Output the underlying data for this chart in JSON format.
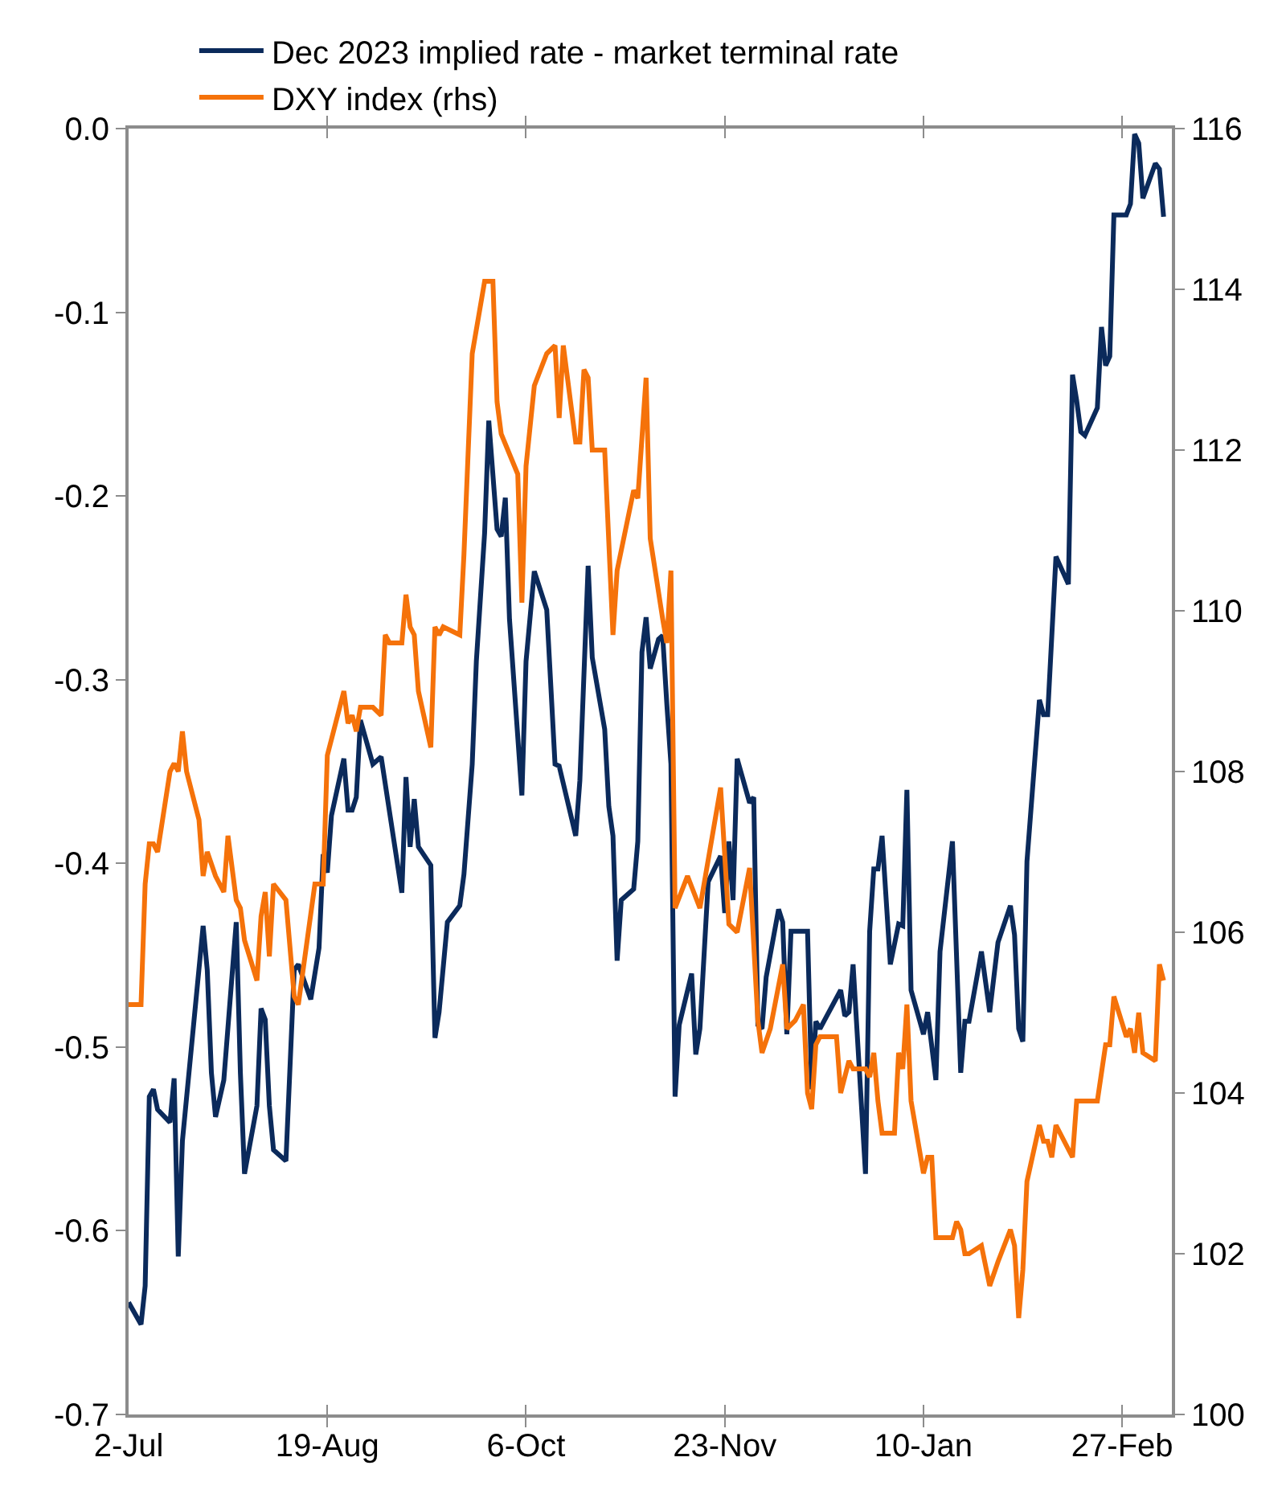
{
  "chart_data": {
    "type": "line",
    "xlim": [
      "2022-07-02",
      "2023-03-11"
    ],
    "xticks": [
      {
        "value": "2022-07-02",
        "label": "2-Jul"
      },
      {
        "value": "2022-08-19",
        "label": "19-Aug"
      },
      {
        "value": "2022-10-06",
        "label": "6-Oct"
      },
      {
        "value": "2022-11-23",
        "label": "23-Nov"
      },
      {
        "value": "2023-01-10",
        "label": "10-Jan"
      },
      {
        "value": "2023-02-27",
        "label": "27-Feb"
      }
    ],
    "ylim": [
      -0.7,
      0.0
    ],
    "yticks": [
      -0.7,
      -0.6,
      -0.5,
      -0.4,
      -0.3,
      -0.2,
      -0.1,
      {
        "value": 0.0,
        "label": "0.0"
      }
    ],
    "y2lim": [
      100,
      116
    ],
    "y2ticks": [
      100,
      102,
      104,
      106,
      108,
      110,
      112,
      114,
      116
    ],
    "legend": "top left",
    "line_style": "solid",
    "series": [
      {
        "name": "Dec 2023 implied rate - market terminal rate",
        "color": "#0b2a5b",
        "x": [
          "2022-07-02",
          "2022-07-05",
          "2022-07-06",
          "2022-07-07",
          "2022-07-08",
          "2022-07-09",
          "2022-07-12",
          "2022-07-13",
          "2022-07-14",
          "2022-07-15",
          "2022-07-20",
          "2022-07-21",
          "2022-07-22",
          "2022-07-23",
          "2022-07-25",
          "2022-07-28",
          "2022-07-29",
          "2022-07-30",
          "2022-08-02",
          "2022-08-03",
          "2022-08-04",
          "2022-08-05",
          "2022-08-06",
          "2022-08-09",
          "2022-08-11",
          "2022-08-12",
          "2022-08-15",
          "2022-08-17",
          "2022-08-18",
          "2022-08-19",
          "2022-08-20",
          "2022-08-23",
          "2022-08-24",
          "2022-08-25",
          "2022-08-26",
          "2022-08-27",
          "2022-08-30",
          "2022-09-01",
          "2022-09-06",
          "2022-09-07",
          "2022-09-08",
          "2022-09-09",
          "2022-09-10",
          "2022-09-13",
          "2022-09-14",
          "2022-09-15",
          "2022-09-17",
          "2022-09-20",
          "2022-09-21",
          "2022-09-23",
          "2022-09-24",
          "2022-09-26",
          "2022-09-27",
          "2022-09-29",
          "2022-09-30",
          "2022-10-01",
          "2022-10-02",
          "2022-10-05",
          "2022-10-06",
          "2022-10-08",
          "2022-10-11",
          "2022-10-13",
          "2022-10-14",
          "2022-10-18",
          "2022-10-19",
          "2022-10-21",
          "2022-10-22",
          "2022-10-25",
          "2022-10-26",
          "2022-10-27",
          "2022-10-28",
          "2022-10-29",
          "2022-11-01",
          "2022-11-02",
          "2022-11-03",
          "2022-11-04",
          "2022-11-05",
          "2022-11-07",
          "2022-11-08",
          "2022-11-09",
          "2022-11-10",
          "2022-11-11",
          "2022-11-12",
          "2022-11-15",
          "2022-11-16",
          "2022-11-17",
          "2022-11-19",
          "2022-11-22",
          "2022-11-23",
          "2022-11-24",
          "2022-11-25",
          "2022-11-26",
          "2022-11-29",
          "2022-11-30",
          "2022-12-01",
          "2022-12-02",
          "2022-12-03",
          "2022-12-06",
          "2022-12-07",
          "2022-12-08",
          "2022-12-09",
          "2022-12-13",
          "2022-12-14",
          "2022-12-15",
          "2022-12-16",
          "2022-12-21",
          "2022-12-22",
          "2022-12-23",
          "2022-12-24",
          "2022-12-27",
          "2022-12-28",
          "2022-12-29",
          "2022-12-30",
          "2022-12-31",
          "2023-01-02",
          "2023-01-04",
          "2023-01-05",
          "2023-01-06",
          "2023-01-07",
          "2023-01-10",
          "2023-01-11",
          "2023-01-13",
          "2023-01-14",
          "2023-01-17",
          "2023-01-19",
          "2023-01-20",
          "2023-01-21",
          "2023-01-24",
          "2023-01-26",
          "2023-01-28",
          "2023-01-31",
          "2023-02-01",
          "2023-02-02",
          "2023-02-03",
          "2023-02-04",
          "2023-02-07",
          "2023-02-08",
          "2023-02-09",
          "2023-02-11",
          "2023-02-14",
          "2023-02-15",
          "2023-02-16",
          "2023-02-17",
          "2023-02-18",
          "2023-02-21",
          "2023-02-22",
          "2023-02-23",
          "2023-02-24",
          "2023-02-25",
          "2023-02-28",
          "2023-03-01",
          "2023-03-02",
          "2023-03-03",
          "2023-03-04",
          "2023-03-07",
          "2023-03-08",
          "2023-03-09"
        ],
        "values": [
          -0.639,
          -0.651,
          -0.63,
          -0.527,
          -0.523,
          -0.534,
          -0.541,
          -0.517,
          -0.614,
          -0.551,
          -0.434,
          -0.458,
          -0.514,
          -0.538,
          -0.518,
          -0.432,
          -0.514,
          -0.569,
          -0.532,
          -0.479,
          -0.485,
          -0.532,
          -0.556,
          -0.562,
          -0.458,
          -0.455,
          -0.474,
          -0.446,
          -0.395,
          -0.405,
          -0.374,
          -0.343,
          -0.371,
          -0.371,
          -0.364,
          -0.322,
          -0.346,
          -0.342,
          -0.416,
          -0.353,
          -0.391,
          -0.365,
          -0.391,
          -0.401,
          -0.495,
          -0.481,
          -0.432,
          -0.423,
          -0.406,
          -0.346,
          -0.29,
          -0.22,
          -0.159,
          -0.218,
          -0.222,
          -0.201,
          -0.267,
          -0.363,
          -0.29,
          -0.241,
          -0.262,
          -0.346,
          -0.347,
          -0.385,
          -0.355,
          -0.238,
          -0.288,
          -0.327,
          -0.369,
          -0.385,
          -0.453,
          -0.42,
          -0.414,
          -0.388,
          -0.285,
          -0.266,
          -0.294,
          -0.278,
          -0.276,
          -0.313,
          -0.346,
          -0.527,
          -0.488,
          -0.46,
          -0.504,
          -0.49,
          -0.41,
          -0.396,
          -0.427,
          -0.388,
          -0.42,
          -0.343,
          -0.367,
          -0.364,
          -0.488,
          -0.49,
          -0.462,
          -0.425,
          -0.432,
          -0.493,
          -0.437,
          -0.437,
          -0.523,
          -0.486,
          -0.49,
          -0.469,
          -0.483,
          -0.481,
          -0.455,
          -0.569,
          -0.437,
          -0.403,
          -0.403,
          -0.385,
          -0.455,
          -0.433,
          -0.434,
          -0.36,
          -0.469,
          -0.493,
          -0.481,
          -0.518,
          -0.448,
          -0.388,
          -0.514,
          -0.486,
          -0.486,
          -0.448,
          -0.481,
          -0.443,
          -0.423,
          -0.439,
          -0.49,
          -0.497,
          -0.399,
          -0.311,
          -0.319,
          -0.319,
          -0.233,
          -0.248,
          -0.134,
          -0.148,
          -0.165,
          -0.167,
          -0.152,
          -0.108,
          -0.129,
          -0.124,
          -0.047,
          -0.047,
          -0.041,
          -0.003,
          -0.008,
          -0.038,
          -0.019,
          -0.022,
          -0.048
        ]
      },
      {
        "name": "DXY index (rhs)",
        "color": "#f5720a",
        "axis": "y2",
        "x": [
          "2022-07-02",
          "2022-07-05",
          "2022-07-06",
          "2022-07-07",
          "2022-07-08",
          "2022-07-09",
          "2022-07-12",
          "2022-07-13",
          "2022-07-14",
          "2022-07-15",
          "2022-07-16",
          "2022-07-19",
          "2022-07-20",
          "2022-07-21",
          "2022-07-23",
          "2022-07-25",
          "2022-07-26",
          "2022-07-28",
          "2022-07-29",
          "2022-07-30",
          "2022-08-02",
          "2022-08-03",
          "2022-08-04",
          "2022-08-05",
          "2022-08-06",
          "2022-08-09",
          "2022-08-11",
          "2022-08-12",
          "2022-08-16",
          "2022-08-18",
          "2022-08-19",
          "2022-08-23",
          "2022-08-24",
          "2022-08-25",
          "2022-08-26",
          "2022-08-27",
          "2022-08-30",
          "2022-09-01",
          "2022-09-02",
          "2022-09-03",
          "2022-09-06",
          "2022-09-07",
          "2022-09-08",
          "2022-09-09",
          "2022-09-10",
          "2022-09-13",
          "2022-09-14",
          "2022-09-15",
          "2022-09-16",
          "2022-09-20",
          "2022-09-21",
          "2022-09-23",
          "2022-09-26",
          "2022-09-28",
          "2022-09-29",
          "2022-09-30",
          "2022-10-04",
          "2022-10-05",
          "2022-10-06",
          "2022-10-08",
          "2022-10-11",
          "2022-10-13",
          "2022-10-14",
          "2022-10-15",
          "2022-10-18",
          "2022-10-19",
          "2022-10-20",
          "2022-10-21",
          "2022-10-22",
          "2022-10-25",
          "2022-10-27",
          "2022-10-28",
          "2022-11-01",
          "2022-11-02",
          "2022-11-04",
          "2022-11-05",
          "2022-11-08",
          "2022-11-09",
          "2022-11-10",
          "2022-11-11",
          "2022-11-14",
          "2022-11-17",
          "2022-11-19",
          "2022-11-22",
          "2022-11-24",
          "2022-11-26",
          "2022-11-29",
          "2022-12-01",
          "2022-12-02",
          "2022-12-04",
          "2022-12-07",
          "2022-12-08",
          "2022-12-10",
          "2022-12-12",
          "2022-12-13",
          "2022-12-14",
          "2022-12-15",
          "2022-12-16",
          "2022-12-20",
          "2022-12-21",
          "2022-12-23",
          "2022-12-24",
          "2022-12-27",
          "2022-12-28",
          "2022-12-29",
          "2022-12-30",
          "2022-12-31",
          "2023-01-03",
          "2023-01-04",
          "2023-01-05",
          "2023-01-06",
          "2023-01-07",
          "2023-01-10",
          "2023-01-11",
          "2023-01-12",
          "2023-01-13",
          "2023-01-14",
          "2023-01-17",
          "2023-01-18",
          "2023-01-19",
          "2023-01-20",
          "2023-01-21",
          "2023-01-24",
          "2023-01-26",
          "2023-01-28",
          "2023-01-31",
          "2023-02-01",
          "2023-02-02",
          "2023-02-03",
          "2023-02-04",
          "2023-02-07",
          "2023-02-08",
          "2023-02-09",
          "2023-02-10",
          "2023-02-11",
          "2023-02-15",
          "2023-02-16",
          "2023-02-17",
          "2023-02-21",
          "2023-02-23",
          "2023-02-24",
          "2023-02-25",
          "2023-02-28",
          "2023-03-01",
          "2023-03-02",
          "2023-03-03",
          "2023-03-04",
          "2023-03-07",
          "2023-03-08",
          "2023-03-09"
        ],
        "values": [
          105.1,
          105.1,
          106.6,
          107.1,
          107.1,
          107.0,
          108.0,
          108.1,
          108.0,
          108.5,
          108.0,
          107.4,
          106.7,
          107.0,
          106.7,
          106.5,
          107.2,
          106.4,
          106.3,
          105.9,
          105.4,
          106.2,
          106.5,
          105.7,
          106.6,
          106.4,
          105.2,
          105.1,
          106.6,
          106.6,
          108.2,
          109.0,
          108.6,
          108.7,
          108.5,
          108.8,
          108.8,
          108.7,
          109.7,
          109.6,
          109.6,
          110.2,
          109.8,
          109.7,
          109.0,
          108.3,
          109.8,
          109.7,
          109.8,
          109.7,
          110.7,
          113.2,
          114.1,
          114.1,
          112.6,
          112.2,
          111.7,
          110.1,
          111.8,
          112.8,
          113.2,
          113.3,
          112.4,
          113.3,
          112.1,
          112.1,
          113.0,
          112.9,
          112.0,
          112.0,
          109.7,
          110.5,
          111.5,
          111.4,
          112.9,
          110.9,
          109.9,
          109.6,
          110.5,
          106.3,
          106.7,
          106.3,
          106.9,
          107.8,
          106.1,
          106.0,
          106.8,
          104.9,
          104.5,
          104.8,
          105.6,
          104.8,
          104.9,
          105.1,
          104.0,
          103.8,
          104.6,
          104.7,
          104.7,
          104.0,
          104.4,
          104.3,
          104.3,
          104.2,
          104.5,
          103.9,
          103.5,
          103.5,
          104.5,
          104.3,
          105.1,
          103.9,
          103.0,
          103.2,
          103.2,
          102.2,
          102.2,
          102.2,
          102.4,
          102.3,
          102.0,
          102.0,
          102.1,
          101.6,
          101.9,
          102.3,
          102.1,
          101.2,
          101.8,
          102.9,
          103.6,
          103.4,
          103.4,
          103.2,
          103.6,
          103.2,
          103.9,
          103.9,
          103.9,
          104.6,
          104.6,
          105.2,
          104.7,
          104.8,
          104.5,
          105.0,
          104.5,
          104.4,
          105.6,
          105.4
        ]
      }
    ]
  }
}
